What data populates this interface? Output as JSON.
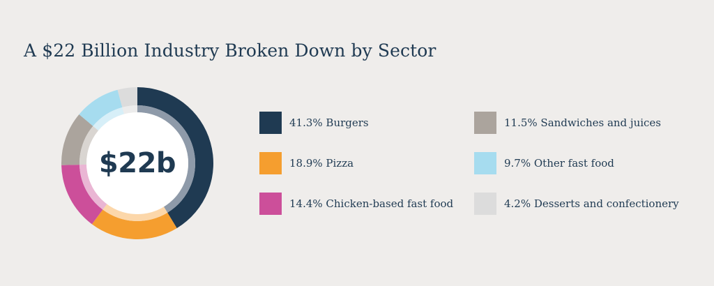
{
  "title": "A $22 Billion Industry Broken Down by Sector",
  "center_label": "$22b",
  "chart_data": {
    "type": "pie",
    "title": "A $22 Billion Industry Broken Down by Sector",
    "center_label": "$22b",
    "slices": [
      {
        "name": "Burgers",
        "value": 41.3,
        "label": "41.3% Burgers",
        "color": "#1f3a52",
        "inner_color": "#8e9aa9"
      },
      {
        "name": "Pizza",
        "value": 18.9,
        "label": "18.9% Pizza",
        "color": "#f59e2f",
        "inner_color": "#fcd7aa"
      },
      {
        "name": "Chicken-based fast food",
        "value": 14.4,
        "label": "14.4% Chicken-based fast food",
        "color": "#cc4f9a",
        "inner_color": "#eab6d4"
      },
      {
        "name": "Sandwiches and juices",
        "value": 11.5,
        "label": "11.5% Sandwiches and juices",
        "color": "#aba49d",
        "inner_color": "#d9d5d1"
      },
      {
        "name": "Other fast food",
        "value": 9.7,
        "label": "9.7% Other fast food",
        "color": "#a6dcef",
        "inner_color": "#d7eff8"
      },
      {
        "name": "Desserts and confectionery",
        "value": 4.2,
        "label": "4.2% Desserts and confectionery",
        "color": "#dcdcdc",
        "inner_color": "#ececec"
      }
    ],
    "legend_placement": "right"
  }
}
